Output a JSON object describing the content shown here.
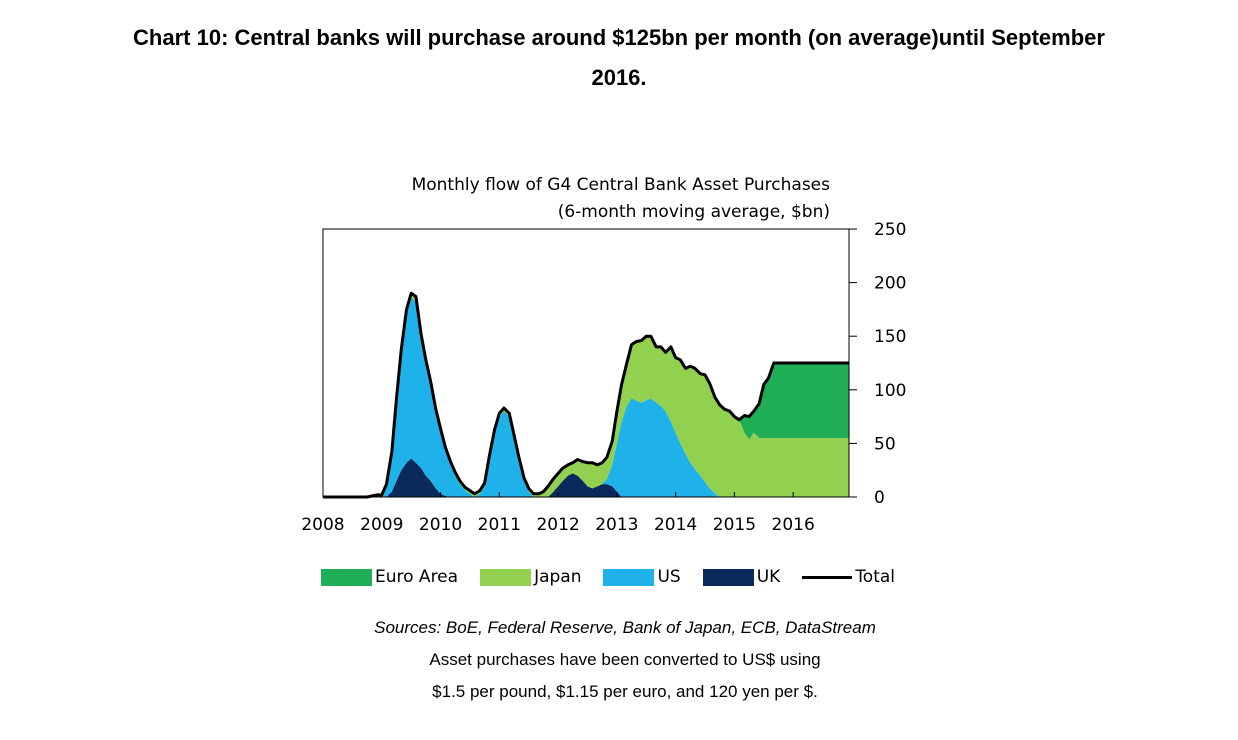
{
  "headline": {
    "line1": "Chart 10: Central banks will purchase around $125bn per month (on average)until September",
    "line2": "2016."
  },
  "chart_data": {
    "type": "area",
    "title": "Monthly flow of G4 Central Bank Asset Purchases",
    "subtitle": "(6-month moving average, $bn)",
    "ylim": [
      0,
      250
    ],
    "yticks": [
      "0",
      "50",
      "100",
      "150",
      "200",
      "250"
    ],
    "xlim": [
      2008.0,
      2016.95
    ],
    "xticks": [
      "2008",
      "2009",
      "2010",
      "2011",
      "2012",
      "2013",
      "2014",
      "2015",
      "2016"
    ],
    "y_axis_side": "right",
    "legend_position": "bottom",
    "stacked": true,
    "x": [
      2008.0,
      2008.5,
      2008.75,
      2008.92,
      2009.0,
      2009.08,
      2009.17,
      2009.25,
      2009.33,
      2009.42,
      2009.5,
      2009.58,
      2009.67,
      2009.75,
      2009.83,
      2009.92,
      2010.0,
      2010.08,
      2010.17,
      2010.25,
      2010.33,
      2010.42,
      2010.5,
      2010.58,
      2010.67,
      2010.75,
      2010.83,
      2010.92,
      2011.0,
      2011.08,
      2011.17,
      2011.25,
      2011.33,
      2011.42,
      2011.5,
      2011.58,
      2011.67,
      2011.75,
      2011.83,
      2011.92,
      2012.0,
      2012.08,
      2012.17,
      2012.25,
      2012.33,
      2012.42,
      2012.5,
      2012.58,
      2012.67,
      2012.75,
      2012.83,
      2012.92,
      2013.0,
      2013.08,
      2013.17,
      2013.25,
      2013.33,
      2013.42,
      2013.5,
      2013.58,
      2013.67,
      2013.75,
      2013.83,
      2013.92,
      2014.0,
      2014.08,
      2014.17,
      2014.25,
      2014.33,
      2014.42,
      2014.5,
      2014.58,
      2014.67,
      2014.75,
      2014.83,
      2014.92,
      2015.0,
      2015.08,
      2015.17,
      2015.25,
      2015.33,
      2015.42,
      2015.5,
      2015.58,
      2015.67,
      2016.0,
      2016.5,
      2016.95
    ],
    "series": [
      {
        "name": "UK",
        "color": "#0a2a5c",
        "values": [
          0,
          0,
          0,
          0,
          0,
          0,
          5,
          15,
          25,
          32,
          36,
          32,
          27,
          20,
          15,
          8,
          3,
          1,
          0,
          0,
          0,
          0,
          0,
          0,
          0,
          0,
          0,
          0,
          0,
          0,
          0,
          0,
          0,
          0,
          0,
          0,
          0,
          0,
          0,
          5,
          10,
          15,
          20,
          22,
          20,
          15,
          10,
          8,
          10,
          12,
          12,
          10,
          5,
          0,
          0,
          0,
          0,
          0,
          0,
          0,
          0,
          0,
          0,
          0,
          0,
          0,
          0,
          0,
          0,
          0,
          0,
          0,
          0,
          0,
          0,
          0,
          0,
          0,
          0,
          0,
          0,
          0,
          0,
          0,
          0,
          0,
          0,
          0
        ]
      },
      {
        "name": "US",
        "color": "#1eb1ea",
        "values": [
          0,
          0,
          0,
          0,
          0,
          10,
          35,
          75,
          110,
          140,
          150,
          150,
          120,
          105,
          90,
          72,
          58,
          43,
          30,
          20,
          12,
          6,
          3,
          0,
          3,
          10,
          35,
          60,
          75,
          80,
          75,
          55,
          35,
          15,
          5,
          0,
          0,
          0,
          0,
          0,
          0,
          0,
          0,
          0,
          0,
          0,
          0,
          0,
          0,
          0,
          5,
          20,
          45,
          70,
          85,
          92,
          90,
          88,
          90,
          92,
          88,
          85,
          80,
          70,
          60,
          50,
          40,
          32,
          26,
          20,
          14,
          8,
          3,
          0,
          0,
          0,
          0,
          0,
          0,
          0,
          0,
          0,
          0,
          0,
          0,
          0,
          0,
          0
        ]
      },
      {
        "name": "Japan",
        "color": "#92d050",
        "values": [
          0,
          0,
          0,
          2,
          2,
          2,
          2,
          2,
          2,
          3,
          4,
          5,
          5,
          3,
          3,
          2,
          3,
          3,
          3,
          3,
          3,
          3,
          3,
          3,
          3,
          3,
          3,
          3,
          3,
          3,
          3,
          3,
          3,
          3,
          3,
          3,
          3,
          5,
          10,
          12,
          12,
          12,
          10,
          10,
          15,
          18,
          22,
          24,
          20,
          20,
          20,
          22,
          30,
          35,
          40,
          50,
          55,
          58,
          60,
          58,
          52,
          55,
          55,
          70,
          70,
          78,
          80,
          90,
          94,
          95,
          100,
          98,
          90,
          86,
          82,
          80,
          75,
          72,
          60,
          54,
          60,
          55,
          55,
          55,
          55,
          55,
          55,
          55
        ]
      },
      {
        "name": "Euro Area",
        "color": "#1fae55",
        "values": [
          0,
          0,
          0,
          0,
          0,
          0,
          0,
          0,
          0,
          0,
          0,
          0,
          0,
          0,
          0,
          0,
          0,
          0,
          0,
          0,
          0,
          0,
          0,
          0,
          0,
          0,
          0,
          0,
          0,
          0,
          0,
          0,
          0,
          0,
          0,
          0,
          0,
          0,
          0,
          0,
          0,
          0,
          0,
          0,
          0,
          0,
          0,
          0,
          0,
          0,
          0,
          0,
          0,
          0,
          0,
          0,
          0,
          0,
          0,
          0,
          0,
          0,
          0,
          0,
          0,
          0,
          0,
          0,
          0,
          0,
          0,
          0,
          0,
          0,
          0,
          0,
          0,
          0,
          16,
          21,
          20,
          32,
          50,
          56,
          70,
          70,
          70,
          70
        ]
      }
    ],
    "total": {
      "name": "Total",
      "color": "#000000",
      "values": [
        0,
        0,
        0,
        2,
        2,
        12,
        42,
        92,
        137,
        175,
        190,
        187,
        152,
        128,
        108,
        82,
        64,
        47,
        33,
        23,
        15,
        9,
        6,
        3,
        6,
        13,
        38,
        63,
        78,
        83,
        78,
        58,
        38,
        18,
        8,
        3,
        3,
        5,
        10,
        17,
        22,
        27,
        30,
        32,
        35,
        33,
        32,
        32,
        30,
        32,
        37,
        52,
        80,
        105,
        125,
        142,
        145,
        146,
        150,
        150,
        140,
        140,
        135,
        140,
        130,
        128,
        120,
        122,
        120,
        115,
        114,
        106,
        93,
        86,
        82,
        80,
        75,
        72,
        76,
        75,
        80,
        87,
        105,
        111,
        125,
        125,
        125,
        125
      ]
    }
  },
  "legend": {
    "euro": "Euro Area",
    "japan": "Japan",
    "us": "US",
    "uk": "UK",
    "total": "Total"
  },
  "notes": {
    "sources": "Sources: BoE, Federal Reserve, Bank of Japan, ECB, DataStream",
    "line2": "Asset purchases have been converted to US$ using",
    "line3": "$1.5 per pound, $1.15 per euro, and 120 yen per $."
  }
}
